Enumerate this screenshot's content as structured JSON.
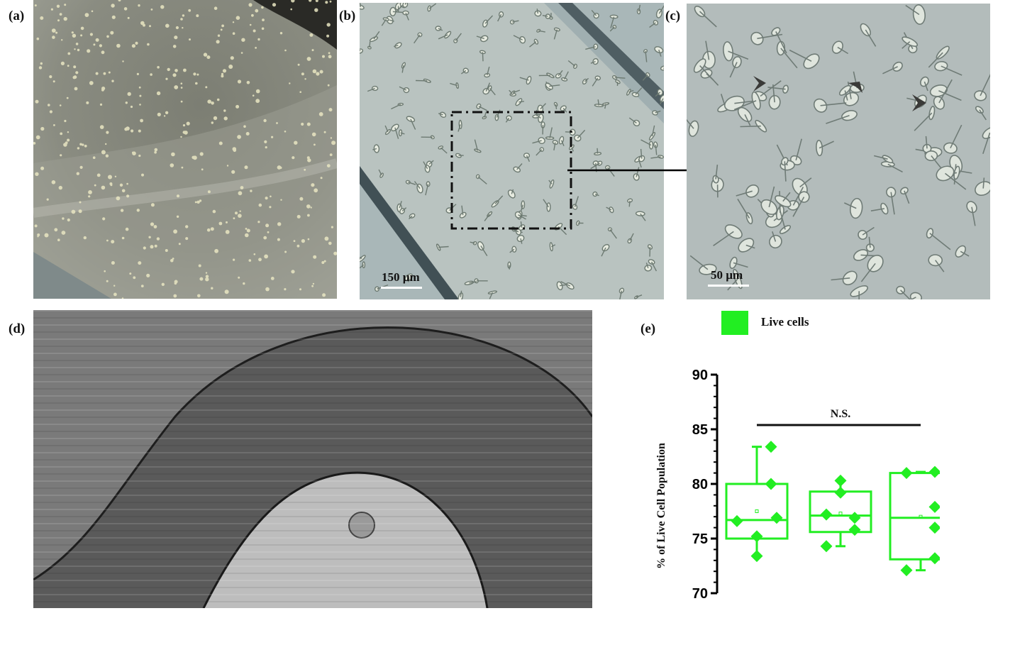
{
  "panels": {
    "a": {
      "label": "(a)"
    },
    "b": {
      "label": "(b)",
      "scale_bar": "150 µm"
    },
    "c": {
      "label": "(c)",
      "scale_bar": "50 µm"
    },
    "d": {
      "label": "(d)"
    },
    "e": {
      "label": "(e)"
    }
  },
  "colors": {
    "accent": "#22ee22",
    "micro_bg_a": "#8f9186",
    "micro_bg_b": "#aebcbc",
    "micro_bg_d": "#6e6e6e"
  },
  "chart_data": {
    "type": "box",
    "legend": [
      {
        "label": "Live cells",
        "color": "#22ee22"
      }
    ],
    "ylabel": "% of Live Cell Population",
    "xlabel": "",
    "ylim": [
      70,
      90
    ],
    "yticks": [
      70,
      75,
      80,
      85,
      90
    ],
    "annotation": "N.S.",
    "series": [
      {
        "points": [
          83.4,
          80.0,
          76.9,
          76.6,
          75.2,
          73.4
        ],
        "box": {
          "q1": 75.0,
          "median": 76.7,
          "q3": 80.0,
          "whisker_low": 73.4,
          "whisker_high": 83.4,
          "mean": 77.5
        }
      },
      {
        "points": [
          80.3,
          79.2,
          77.2,
          76.9,
          75.8,
          74.3
        ],
        "box": {
          "q1": 75.6,
          "median": 77.1,
          "q3": 79.3,
          "whisker_low": 74.3,
          "whisker_high": 80.3,
          "mean": 77.3
        }
      },
      {
        "points": [
          81.0,
          81.1,
          77.9,
          76.0,
          73.2,
          72.1
        ],
        "box": {
          "q1": 73.1,
          "median": 76.9,
          "q3": 81.0,
          "whisker_low": 72.1,
          "whisker_high": 81.1,
          "mean": 77.0
        }
      }
    ]
  }
}
